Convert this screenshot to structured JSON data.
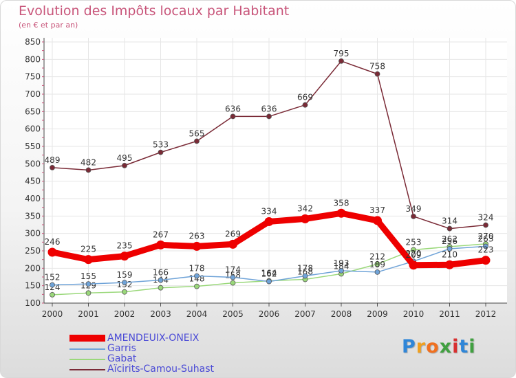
{
  "chart_data": {
    "type": "line",
    "title": "Evolution des Impôts locaux par Habitant",
    "subtitle": "(en € et par an)",
    "xlabel": "",
    "ylabel": "",
    "categories": [
      "2000",
      "2001",
      "2002",
      "2003",
      "2004",
      "2005",
      "2006",
      "2007",
      "2008",
      "2009",
      "2010",
      "2011",
      "2012"
    ],
    "ylim": [
      100,
      850
    ],
    "yticks": [
      100,
      150,
      200,
      250,
      300,
      350,
      400,
      450,
      500,
      550,
      600,
      650,
      700,
      750,
      800,
      850
    ],
    "grid": true,
    "legend_position": "bottom-left",
    "series": [
      {
        "name": "Aïcirits-Camou-Suhast",
        "color": "#7a2a36",
        "values": [
          489,
          482,
          495,
          533,
          565,
          636,
          636,
          669,
          795,
          758,
          349,
          314,
          324
        ]
      },
      {
        "name": "Gabat",
        "color": "#9ad87a",
        "values": [
          124,
          129,
          132,
          144,
          148,
          158,
          164,
          168,
          184,
          212,
          253,
          262,
          270
        ]
      },
      {
        "name": "Garris",
        "color": "#6fa3d8",
        "values": [
          152,
          155,
          159,
          166,
          178,
          174,
          162,
          178,
          193,
          189,
          220,
          256,
          263
        ]
      },
      {
        "name": "AMENDEUIX-ONEIX",
        "color": "#ee0000",
        "values": [
          246,
          225,
          235,
          267,
          263,
          269,
          334,
          342,
          358,
          337,
          209,
          210,
          223
        ]
      }
    ]
  },
  "legend": [
    {
      "name": "AMENDEUIX-ONEIX",
      "color": "#ee0000",
      "thickness": "thick"
    },
    {
      "name": "Garris",
      "color": "#6fa3d8",
      "thickness": "thin"
    },
    {
      "name": "Gabat",
      "color": "#9ad87a",
      "thickness": "thin"
    },
    {
      "name": "Aïcirits-Camou-Suhast",
      "color": "#7a2a36",
      "thickness": "thin"
    }
  ],
  "logo": {
    "letters": [
      {
        "char": "P",
        "color": "#2f86d8"
      },
      {
        "char": "r",
        "color": "#f0a020"
      },
      {
        "char": "o",
        "color": "#f07020"
      },
      {
        "char": "x",
        "color": "#40a040"
      },
      {
        "char": "i",
        "color": "#d83030"
      },
      {
        "char": "t",
        "color": "#2f86d8"
      },
      {
        "char": "i",
        "color": "#40a040"
      }
    ]
  }
}
